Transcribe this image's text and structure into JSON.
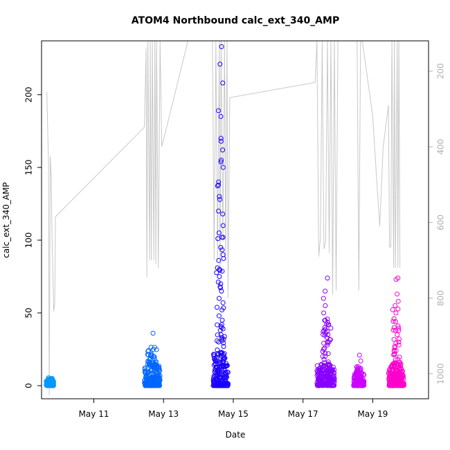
{
  "chart_data": {
    "type": "scatter",
    "title": "ATOM4 Northbound calc_ext_340_AMP",
    "xlabel": "Date",
    "ylabel": "calc_ext_340_AMP",
    "xlim": [
      9.5,
      20.6
    ],
    "ylim": [
      -9,
      237
    ],
    "y2lim": [
      1066,
      120
    ],
    "x_ticks": [
      {
        "value": 11,
        "label": "May 11"
      },
      {
        "value": 13,
        "label": "May 13"
      },
      {
        "value": 15,
        "label": "May 15"
      },
      {
        "value": 17,
        "label": "May 17"
      },
      {
        "value": 19,
        "label": "May 19"
      }
    ],
    "y_ticks": [
      0,
      50,
      100,
      150,
      200
    ],
    "y2_ticks": [
      200,
      400,
      600,
      800,
      1000
    ],
    "grid": false,
    "legend": "none",
    "colors": {
      "line": "#c8c8c8",
      "frame": "#000000",
      "right_axis": "#b0b0b0"
    },
    "clusters": [
      {
        "x_start": 9.63,
        "x_end": 9.85,
        "base_max": 4,
        "peak": 6,
        "color": "#0099ff",
        "outliers": []
      },
      {
        "x_start": 12.45,
        "x_end": 12.9,
        "base_max": 14,
        "peak": 30,
        "color": "#0066ff",
        "outliers": [
          36,
          25,
          22,
          20,
          18
        ]
      },
      {
        "x_start": 14.42,
        "x_end": 14.85,
        "base_max": 22,
        "peak": 170,
        "color": "#1a00ff",
        "outliers": [
          233,
          221,
          208,
          189,
          185,
          170,
          168,
          162,
          155,
          150,
          140,
          138,
          130,
          128,
          120,
          118,
          110,
          105,
          102,
          95,
          90,
          86,
          80,
          75,
          70,
          68,
          65,
          60,
          57,
          52,
          48,
          45,
          42,
          40,
          38,
          35,
          32,
          30
        ]
      },
      {
        "x_start": 17.4,
        "x_end": 17.9,
        "base_max": 14,
        "peak": 47,
        "color": "#8800ff",
        "outliers": [
          74,
          65,
          60,
          55,
          50,
          45,
          40,
          36,
          35,
          33,
          30,
          28,
          25
        ]
      },
      {
        "x_start": 18.45,
        "x_end": 18.75,
        "base_max": 8,
        "peak": 13,
        "color": "#cc00ff",
        "outliers": [
          21,
          17,
          13,
          11
        ]
      },
      {
        "x_start": 19.45,
        "x_end": 19.9,
        "base_max": 14,
        "peak": 60,
        "color": "#ff00cc",
        "outliers": [
          74,
          73,
          63,
          58,
          55,
          50,
          46,
          44,
          40,
          38,
          35,
          32,
          30,
          28,
          26,
          24
        ]
      }
    ],
    "secondary_line": [
      [
        9.65,
        255
      ],
      [
        9.7,
        445
      ],
      [
        9.72,
        1057
      ],
      [
        9.75,
        425
      ],
      [
        9.78,
        485
      ],
      [
        9.8,
        635
      ],
      [
        9.85,
        835
      ],
      [
        9.88,
        810
      ],
      [
        9.9,
        585
      ],
      [
        12.45,
        348
      ],
      [
        12.5,
        140
      ],
      [
        12.52,
        745
      ],
      [
        12.55,
        120
      ],
      [
        12.6,
        700
      ],
      [
        12.62,
        120
      ],
      [
        12.65,
        700
      ],
      [
        12.68,
        120
      ],
      [
        12.72,
        700
      ],
      [
        12.75,
        120
      ],
      [
        12.78,
        710
      ],
      [
        12.8,
        120
      ],
      [
        12.85,
        720
      ],
      [
        12.9,
        120
      ],
      [
        12.95,
        400
      ],
      [
        13.7,
        120
      ],
      [
        14.4,
        120
      ],
      [
        14.45,
        700
      ],
      [
        14.5,
        120
      ],
      [
        14.55,
        700
      ],
      [
        14.6,
        120
      ],
      [
        14.62,
        720
      ],
      [
        14.65,
        120
      ],
      [
        14.7,
        650
      ],
      [
        14.75,
        120
      ],
      [
        14.78,
        700
      ],
      [
        14.82,
        120
      ],
      [
        14.85,
        800
      ],
      [
        14.9,
        270
      ],
      [
        17.35,
        230
      ],
      [
        17.4,
        120
      ],
      [
        17.45,
        690
      ],
      [
        17.5,
        640
      ],
      [
        17.55,
        120
      ],
      [
        17.6,
        670
      ],
      [
        17.65,
        650
      ],
      [
        17.7,
        120
      ],
      [
        17.75,
        680
      ],
      [
        17.8,
        120
      ],
      [
        17.85,
        790
      ],
      [
        17.9,
        120
      ],
      [
        17.95,
        780
      ],
      [
        18.0,
        120
      ],
      [
        18.55,
        120
      ],
      [
        18.6,
        780
      ],
      [
        18.65,
        120
      ],
      [
        18.7,
        120
      ],
      [
        19.0,
        320
      ],
      [
        19.1,
        470
      ],
      [
        19.2,
        610
      ],
      [
        19.3,
        400
      ],
      [
        19.45,
        290
      ],
      [
        19.48,
        665
      ],
      [
        19.52,
        665
      ],
      [
        19.55,
        120
      ],
      [
        19.6,
        720
      ],
      [
        19.62,
        120
      ],
      [
        19.65,
        720
      ],
      [
        19.7,
        120
      ],
      [
        19.72,
        720
      ],
      [
        19.75,
        120
      ],
      [
        19.78,
        720
      ]
    ]
  }
}
